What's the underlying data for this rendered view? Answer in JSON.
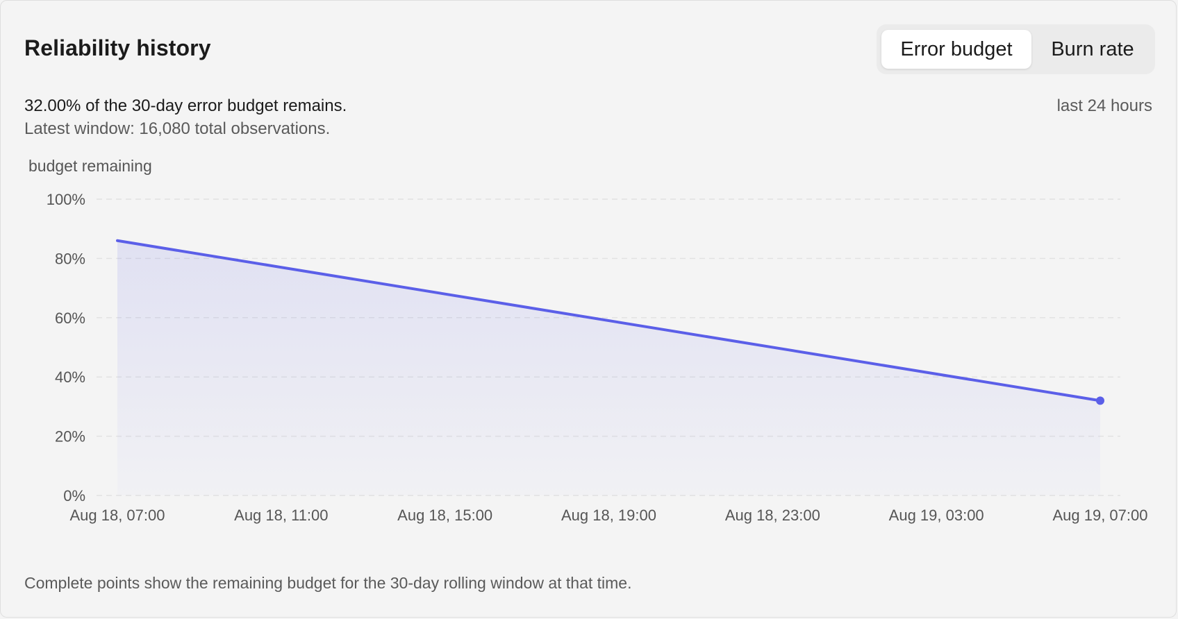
{
  "card": {
    "title": "Reliability history",
    "summary": "32.00% of the 30-day error budget remains.",
    "subsummary": "Latest window: 16,080 total observations.",
    "range_label": "last 24 hours",
    "footnote": "Complete points show the remaining budget for the 30-day rolling window at that time."
  },
  "toggle": {
    "options": [
      "Error budget",
      "Burn rate"
    ],
    "selected": "Error budget"
  },
  "colors": {
    "accent": "#5b5fe8",
    "grid": "#e2e2e2",
    "background": "#f4f4f4"
  },
  "chart_data": {
    "type": "area",
    "ylabel": "budget remaining",
    "xlabel": "",
    "ylim": [
      0,
      100
    ],
    "y_ticks": [
      "0%",
      "20%",
      "40%",
      "60%",
      "80%",
      "100%"
    ],
    "x_ticks": [
      "Aug 18, 07:00",
      "Aug 18, 11:00",
      "Aug 18, 15:00",
      "Aug 18, 19:00",
      "Aug 18, 23:00",
      "Aug 19, 03:00",
      "Aug 19, 07:00"
    ],
    "x": [
      "Aug 18, 07:00",
      "Aug 19, 07:00"
    ],
    "values": [
      86,
      32
    ],
    "grid": true,
    "legend": "none"
  }
}
